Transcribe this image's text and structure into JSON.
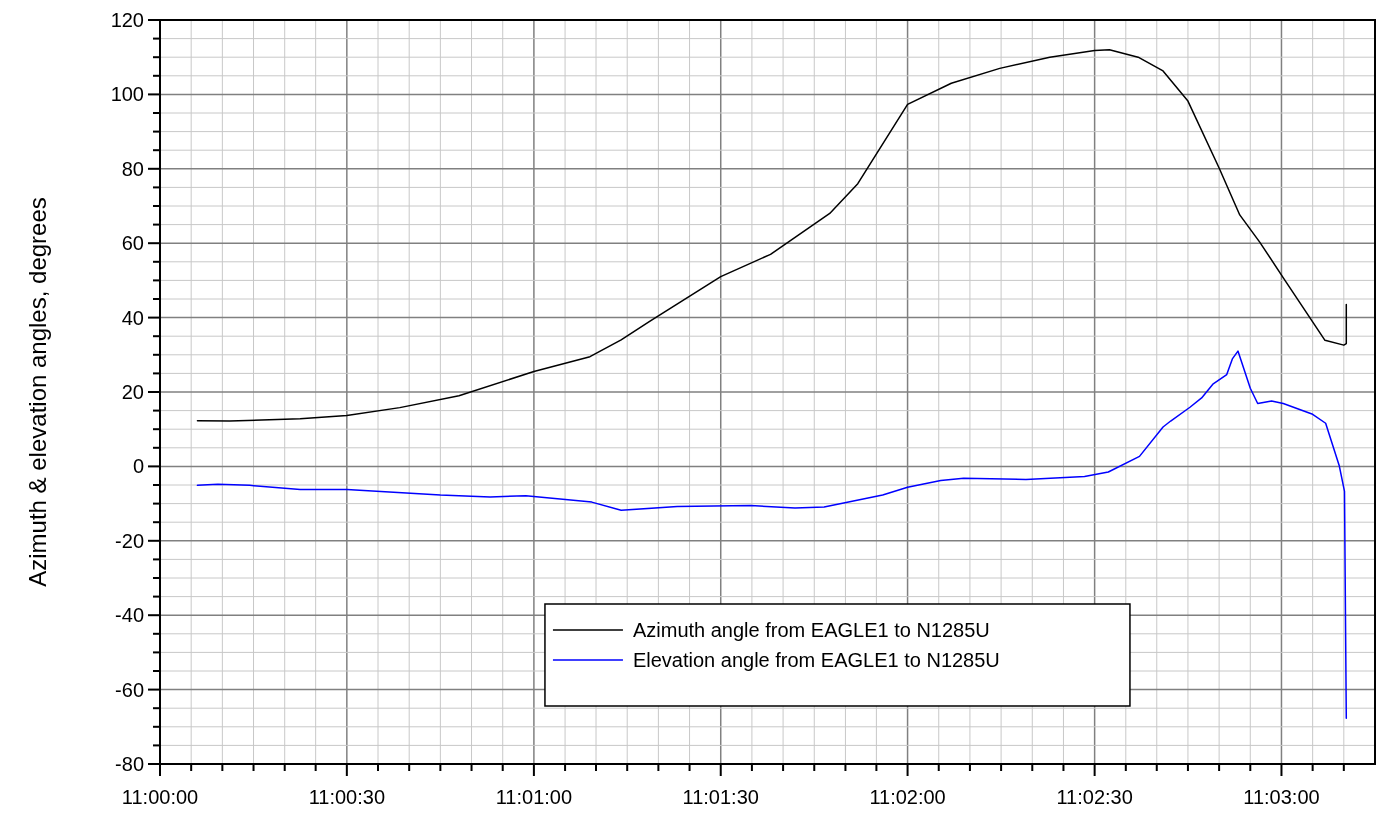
{
  "chart_data": {
    "type": "line",
    "ylabel": "Azimuth & elevation angles, degrees",
    "xlim": [
      11,
      11.05417
    ],
    "ylim": [
      -80,
      120
    ],
    "xticks": [
      {
        "value": 11,
        "label": "11:00:00"
      },
      {
        "value": 11.00139,
        "label": null
      },
      {
        "value": 11.00278,
        "label": null
      },
      {
        "value": 11.00417,
        "label": null
      },
      {
        "value": 11.00556,
        "label": null
      },
      {
        "value": 11.00694,
        "label": null
      },
      {
        "value": 11.00833,
        "label": "11:00:30"
      },
      {
        "value": 11.00972,
        "label": null
      },
      {
        "value": 11.01111,
        "label": null
      },
      {
        "value": 11.0125,
        "label": null
      },
      {
        "value": 11.01389,
        "label": null
      },
      {
        "value": 11.01528,
        "label": null
      },
      {
        "value": 11.01667,
        "label": "11:01:00"
      },
      {
        "value": 11.01806,
        "label": null
      },
      {
        "value": 11.01944,
        "label": null
      },
      {
        "value": 11.02083,
        "label": null
      },
      {
        "value": 11.02222,
        "label": null
      },
      {
        "value": 11.02361,
        "label": null
      },
      {
        "value": 11.025,
        "label": "11:01:30"
      },
      {
        "value": 11.02639,
        "label": null
      },
      {
        "value": 11.02778,
        "label": null
      },
      {
        "value": 11.02917,
        "label": null
      },
      {
        "value": 11.03056,
        "label": null
      },
      {
        "value": 11.03194,
        "label": null
      },
      {
        "value": 11.03333,
        "label": "11:02:00"
      },
      {
        "value": 11.03472,
        "label": null
      },
      {
        "value": 11.03611,
        "label": null
      },
      {
        "value": 11.0375,
        "label": null
      },
      {
        "value": 11.03889,
        "label": null
      },
      {
        "value": 11.04028,
        "label": null
      },
      {
        "value": 11.04167,
        "label": "11:02:30"
      },
      {
        "value": 11.04306,
        "label": null
      },
      {
        "value": 11.04444,
        "label": null
      },
      {
        "value": 11.04583,
        "label": null
      },
      {
        "value": 11.04722,
        "label": null
      },
      {
        "value": 11.04861,
        "label": null
      },
      {
        "value": 11.05,
        "label": "11:03:00"
      },
      {
        "value": 11.05139,
        "label": null
      },
      {
        "value": 11.05278,
        "label": null
      }
    ],
    "yticks": [
      -80,
      {
        "value": -75,
        "label": null
      },
      {
        "value": -70,
        "label": null
      },
      {
        "value": -65,
        "label": null
      },
      -60,
      {
        "value": -55,
        "label": null
      },
      {
        "value": -50,
        "label": null
      },
      {
        "value": -45,
        "label": null
      },
      -40,
      {
        "value": -35,
        "label": null
      },
      {
        "value": -30,
        "label": null
      },
      {
        "value": -25,
        "label": null
      },
      -20,
      {
        "value": -15,
        "label": null
      },
      {
        "value": -10,
        "label": null
      },
      {
        "value": -5,
        "label": null
      },
      0,
      {
        "value": 5,
        "label": null
      },
      {
        "value": 10,
        "label": null
      },
      {
        "value": 15,
        "label": null
      },
      20,
      {
        "value": 25,
        "label": null
      },
      {
        "value": 30,
        "label": null
      },
      {
        "value": 35,
        "label": null
      },
      40,
      {
        "value": 45,
        "label": null
      },
      {
        "value": 50,
        "label": null
      },
      {
        "value": 55,
        "label": null
      },
      60,
      {
        "value": 65,
        "label": null
      },
      {
        "value": 70,
        "label": null
      },
      {
        "value": 75,
        "label": null
      },
      80,
      {
        "value": 85,
        "label": null
      },
      {
        "value": 90,
        "label": null
      },
      {
        "value": 95,
        "label": null
      },
      100,
      {
        "value": 105,
        "label": null
      },
      {
        "value": 110,
        "label": null
      },
      {
        "value": 115,
        "label": null
      },
      120
    ],
    "grid": true,
    "legend": "bottom right",
    "line_style": "solid",
    "series": [
      {
        "name": "Azimuth angle from EAGLE1 to N1285U",
        "color": "#000000",
        "x": [
          11.00167,
          11.00311,
          11.00625,
          11.00833,
          11.01069,
          11.01333,
          11.01667,
          11.01917,
          11.02056,
          11.02183,
          11.025,
          11.02722,
          11.02986,
          11.03111,
          11.03333,
          11.03528,
          11.03744,
          11.03967,
          11.04167,
          11.04233,
          11.04361,
          11.04472,
          11.04583,
          11.04722,
          11.04814,
          11.04903,
          11.05006,
          11.05194,
          11.05278,
          11.05289,
          11.05289
        ],
        "values": [
          12.3,
          12.2,
          12.8,
          13.7,
          15.8,
          19,
          25.5,
          29.5,
          34,
          39,
          51,
          57,
          68,
          76,
          97.3,
          103,
          107,
          110,
          111.8,
          112,
          110,
          106.3,
          98.2,
          80.2,
          67.6,
          60.3,
          50.9,
          33.9,
          32.6,
          33,
          43.5
        ]
      },
      {
        "name": "Elevation angle from EAGLE1 to N1285U",
        "color": "#0000ff",
        "x": [
          11.00167,
          11.00258,
          11.004,
          11.00625,
          11.00833,
          11.0125,
          11.01472,
          11.01631,
          11.01925,
          11.02056,
          11.02306,
          11.02633,
          11.02831,
          11.02961,
          11.03222,
          11.03333,
          11.03481,
          11.03583,
          11.03861,
          11.04122,
          11.04228,
          11.04367,
          11.04472,
          11.04506,
          11.04592,
          11.04644,
          11.04694,
          11.04756,
          11.04781,
          11.04806,
          11.04861,
          11.04894,
          11.04956,
          11.05008,
          11.05139,
          11.05197,
          11.05258,
          11.05281,
          11.05289
        ],
        "values": [
          -5.1,
          -4.8,
          -5.1,
          -6.2,
          -6.2,
          -7.7,
          -8.2,
          -7.9,
          -9.6,
          -11.8,
          -10.8,
          -10.5,
          -11.2,
          -10.9,
          -7.7,
          -5.6,
          -3.8,
          -3.2,
          -3.5,
          -2.7,
          -1.5,
          2.7,
          10.6,
          12.2,
          15.9,
          18.4,
          22.1,
          24.7,
          28.9,
          31,
          21,
          16.9,
          17.6,
          16.9,
          14,
          11.6,
          0.1,
          -6.7,
          -67.7
        ]
      }
    ]
  }
}
